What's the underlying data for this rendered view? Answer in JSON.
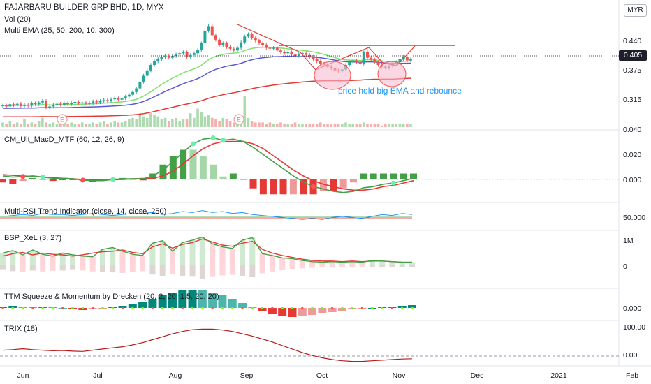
{
  "header": {
    "symbol_title": "FAJARBARU BUILDER GRP BHD, 1D, MYX",
    "volume_label": "Vol (20)",
    "ema_label": "Multi EMA (25, 50, 200, 10, 300)"
  },
  "currency": "MYR",
  "last_price": "0.405",
  "annotation": "price hold big EMA and rebounce",
  "event_marker": "E",
  "panes": {
    "macd_label": "CM_Ult_MacD_MTF (60, 12, 26, 9)",
    "rsi_label": "Multi-RSI Trend Indicator (close, 14, close, 250)",
    "bsp_label": "BSP_XeL (3, 27)",
    "ttm_label": "TTM Squeeze & Momentum by Drecken (20, 2, 20, 1.5, 20, 20)",
    "trix_label": "TRIX (18)"
  },
  "colors": {
    "up": "#26a69a",
    "down": "#ef5350",
    "ema_short": "#7ee26e",
    "ema_mid": "#5a58d6",
    "ema_long": "#e53935",
    "resistance": "#e53935",
    "annotation": "#2196f3",
    "highlight": "#f8bbd0"
  },
  "chart_data": [
    {
      "type": "candlestick",
      "title": "FAJARBARU BUILDER GRP BHD, 1D, MYX",
      "x_ticks": [
        "Jun",
        "Jul",
        "Aug",
        "Sep",
        "Oct",
        "Nov",
        "Dec",
        "2021",
        "Feb"
      ],
      "y_ticks": [
        "0.440",
        "0.375",
        "0.315",
        "0.040"
      ],
      "last_price": 0.405,
      "series": [
        {
          "name": "price_ohlc_close",
          "values": [
            0.302,
            0.3,
            0.305,
            0.303,
            0.306,
            0.301,
            0.304,
            0.302,
            0.307,
            0.305,
            0.309,
            0.312,
            0.298,
            0.3,
            0.303,
            0.306,
            0.304,
            0.307,
            0.305,
            0.308,
            0.31,
            0.307,
            0.309,
            0.306,
            0.308,
            0.311,
            0.309,
            0.312,
            0.314,
            0.312,
            0.316,
            0.318,
            0.315,
            0.318,
            0.322,
            0.326,
            0.332,
            0.34,
            0.355,
            0.368,
            0.38,
            0.392,
            0.4,
            0.405,
            0.41,
            0.413,
            0.408,
            0.412,
            0.415,
            0.418,
            0.42,
            0.41,
            0.414,
            0.418,
            0.425,
            0.44,
            0.468,
            0.478,
            0.458,
            0.448,
            0.436,
            0.44,
            0.432,
            0.428,
            0.424,
            0.43,
            0.442,
            0.455,
            0.46,
            0.452,
            0.446,
            0.44,
            0.436,
            0.43,
            0.428,
            0.43,
            0.424,
            0.42,
            0.418,
            0.42,
            0.415,
            0.412,
            0.416,
            0.418,
            0.414,
            0.41,
            0.405,
            0.4,
            0.395,
            0.392,
            0.388,
            0.385,
            0.38,
            0.378,
            0.382,
            0.392,
            0.398,
            0.402,
            0.398,
            0.395,
            0.42,
            0.408,
            0.404,
            0.398,
            0.392,
            0.388,
            0.386,
            0.39,
            0.395,
            0.398,
            0.405,
            0.41,
            0.402,
            0.405
          ]
        }
      ]
    },
    {
      "type": "bar",
      "title": "Vol (20)",
      "series": [
        {
          "name": "volume",
          "values": [
            3,
            2,
            4,
            2,
            3,
            2,
            5,
            2,
            3,
            2,
            4,
            6,
            3,
            2,
            3,
            2,
            2,
            3,
            2,
            3,
            2,
            2,
            3,
            2,
            2,
            3,
            2,
            3,
            4,
            2,
            3,
            4,
            3,
            3,
            4,
            5,
            6,
            5,
            8,
            7,
            6,
            9,
            8,
            7,
            5,
            6,
            4,
            5,
            6,
            4,
            5,
            5,
            9,
            6,
            12,
            10,
            7,
            8,
            6,
            5,
            4,
            6,
            5,
            4,
            3,
            5,
            8,
            20,
            6,
            4,
            3,
            3,
            3,
            2,
            3,
            2,
            2,
            3,
            2,
            2,
            2,
            3,
            2,
            2,
            2,
            2,
            2,
            2,
            3,
            2,
            2,
            2,
            2,
            2,
            2,
            3,
            2,
            2,
            2,
            2,
            3,
            2,
            2,
            2,
            2,
            1,
            2,
            2,
            2,
            2,
            2,
            2,
            2,
            2
          ]
        }
      ]
    },
    {
      "type": "line",
      "title": "CM_Ult_MacD_MTF (60, 12, 26, 9)",
      "y_ticks": [
        "0.040",
        "0.020",
        "0.000"
      ],
      "series": [
        {
          "name": "macd",
          "values": [
            0.003,
            0.002,
            0.0025,
            0.003,
            0.002,
            0.001,
            0.001,
            0.0005,
            -0.0005,
            -0.001,
            -0.001,
            0.0,
            0.0005,
            0.0005,
            0.0005,
            0.003,
            0.008,
            0.015,
            0.023,
            0.03,
            0.034,
            0.035,
            0.033,
            0.034,
            0.032,
            0.027,
            0.021,
            0.015,
            0.009,
            0.003,
            -0.002,
            -0.006,
            -0.008,
            -0.01,
            -0.011,
            -0.01,
            -0.007,
            -0.006,
            -0.004,
            -0.003,
            -0.001,
            0.001
          ]
        },
        {
          "name": "signal",
          "values": [
            0.004,
            0.0035,
            0.003,
            0.0025,
            0.002,
            0.0015,
            0.001,
            0.0005,
            0.0,
            -0.0003,
            -0.0005,
            -0.0003,
            0.0,
            0.0005,
            0.0008,
            0.001,
            0.003,
            0.007,
            0.013,
            0.02,
            0.026,
            0.03,
            0.032,
            0.032,
            0.032,
            0.03,
            0.026,
            0.02,
            0.014,
            0.008,
            0.003,
            -0.001,
            -0.004,
            -0.006,
            -0.008,
            -0.009,
            -0.009,
            -0.008,
            -0.006,
            -0.005,
            -0.003,
            -0.001
          ]
        }
      ]
    },
    {
      "type": "line",
      "title": "Multi-RSI Trend Indicator (close, 14, close, 250)",
      "y_ticks": [
        "50.000"
      ],
      "series": [
        {
          "name": "rsi",
          "values": [
            50,
            51,
            52,
            51,
            53,
            52,
            52,
            51,
            52,
            53,
            52,
            51,
            52,
            53,
            53,
            54,
            52,
            53,
            55,
            54,
            56,
            54,
            55,
            53,
            54,
            52,
            51,
            50,
            49,
            48,
            47,
            48,
            47,
            49,
            50,
            49,
            48,
            50,
            52,
            51,
            53,
            52
          ]
        }
      ]
    },
    {
      "type": "line",
      "title": "BSP_XeL (3, 27)",
      "y_ticks": [
        "1M",
        "0"
      ],
      "series": [
        {
          "name": "buy_pressure",
          "values": [
            0.4,
            0.48,
            0.34,
            0.5,
            0.36,
            0.3,
            0.4,
            0.34,
            0.3,
            0.28,
            0.52,
            0.58,
            0.46,
            0.36,
            0.32,
            0.72,
            0.8,
            0.46,
            0.74,
            0.82,
            0.92,
            0.7,
            0.6,
            0.55,
            0.82,
            0.9,
            0.38,
            0.32,
            0.24,
            0.22,
            0.16,
            0.12,
            0.1,
            0.12,
            0.1,
            0.12,
            0.1,
            0.16,
            0.14,
            0.12,
            0.1,
            0.1
          ]
        },
        {
          "name": "sell_pressure",
          "values": [
            0.3,
            0.38,
            0.42,
            0.34,
            0.4,
            0.36,
            0.34,
            0.3,
            0.34,
            0.4,
            0.44,
            0.46,
            0.5,
            0.42,
            0.38,
            0.6,
            0.7,
            0.56,
            0.68,
            0.74,
            0.86,
            0.76,
            0.66,
            0.62,
            0.72,
            0.78,
            0.52,
            0.4,
            0.32,
            0.26,
            0.2,
            0.16,
            0.14,
            0.14,
            0.12,
            0.14,
            0.12,
            0.14,
            0.14,
            0.12,
            0.1,
            0.1
          ]
        }
      ]
    },
    {
      "type": "bar",
      "title": "TTM Squeeze & Momentum by Drecken (20, 2, 20, 1.5, 20, 20)",
      "y_ticks": [
        "0.000"
      ],
      "series": [
        {
          "name": "momentum",
          "values": [
            0.002,
            0.003,
            0.002,
            0.001,
            0.002,
            0.001,
            0.0,
            -0.002,
            -0.003,
            -0.002,
            -0.001,
            0.001,
            0.003,
            0.006,
            0.009,
            0.013,
            0.018,
            0.022,
            0.025,
            0.026,
            0.025,
            0.022,
            0.018,
            0.013,
            0.007,
            0.001,
            -0.005,
            -0.009,
            -0.012,
            -0.013,
            -0.012,
            -0.01,
            -0.008,
            -0.006,
            -0.004,
            -0.002,
            -0.001,
            0.0,
            0.001,
            0.002,
            0.003,
            0.004
          ]
        }
      ]
    },
    {
      "type": "line",
      "title": "TRIX (18)",
      "y_ticks": [
        "100.00",
        "0.00"
      ],
      "series": [
        {
          "name": "trix",
          "values": [
            20,
            22,
            25,
            22,
            20,
            18,
            19,
            17,
            16,
            20,
            24,
            28,
            32,
            38,
            46,
            56,
            66,
            76,
            84,
            90,
            92,
            92,
            89,
            84,
            76,
            68,
            58,
            48,
            36,
            24,
            12,
            2,
            -6,
            -12,
            -16,
            -18,
            -18,
            -16,
            -14,
            -12,
            -10,
            -9
          ]
        }
      ]
    }
  ]
}
